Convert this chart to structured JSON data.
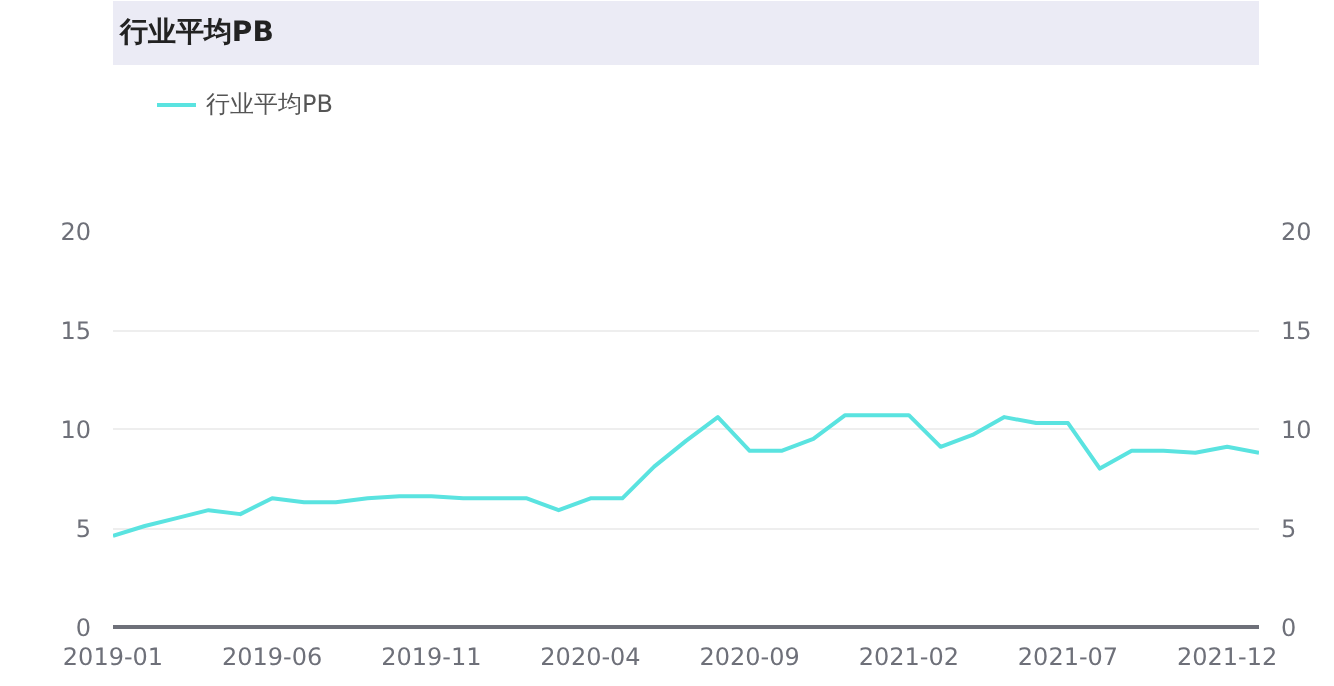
{
  "chart_data": {
    "type": "line",
    "title": "行业平均PB",
    "categories": [
      "2019-01",
      null,
      null,
      null,
      null,
      "2019-06",
      null,
      null,
      null,
      null,
      "2019-11",
      null,
      null,
      null,
      null,
      "2020-04",
      null,
      null,
      null,
      null,
      "2020-09",
      null,
      null,
      null,
      null,
      "2021-02",
      null,
      null,
      null,
      null,
      "2021-07",
      null,
      null,
      null,
      null,
      "2021-12",
      null
    ],
    "series": [
      {
        "name": "行业平均PB",
        "color": "#5ae3e0",
        "values": [
          4.6,
          5.1,
          5.5,
          5.9,
          5.7,
          6.5,
          6.3,
          6.3,
          6.5,
          6.6,
          6.6,
          6.5,
          6.5,
          6.5,
          5.9,
          6.5,
          6.5,
          8.1,
          9.4,
          10.6,
          8.9,
          8.9,
          9.5,
          10.7,
          10.7,
          10.7,
          9.1,
          9.7,
          10.6,
          10.3,
          10.3,
          8.0,
          8.9,
          8.9,
          8.8,
          9.1,
          8.8
        ]
      }
    ],
    "ylim": [
      0,
      20
    ],
    "yticks": [
      0,
      5,
      10,
      15,
      20
    ],
    "y2lim": [
      0,
      20
    ],
    "y2ticks": [
      0,
      5,
      10,
      15,
      20
    ],
    "grid": "y",
    "legend": "top left",
    "marker": "none",
    "line_style": "solid"
  }
}
